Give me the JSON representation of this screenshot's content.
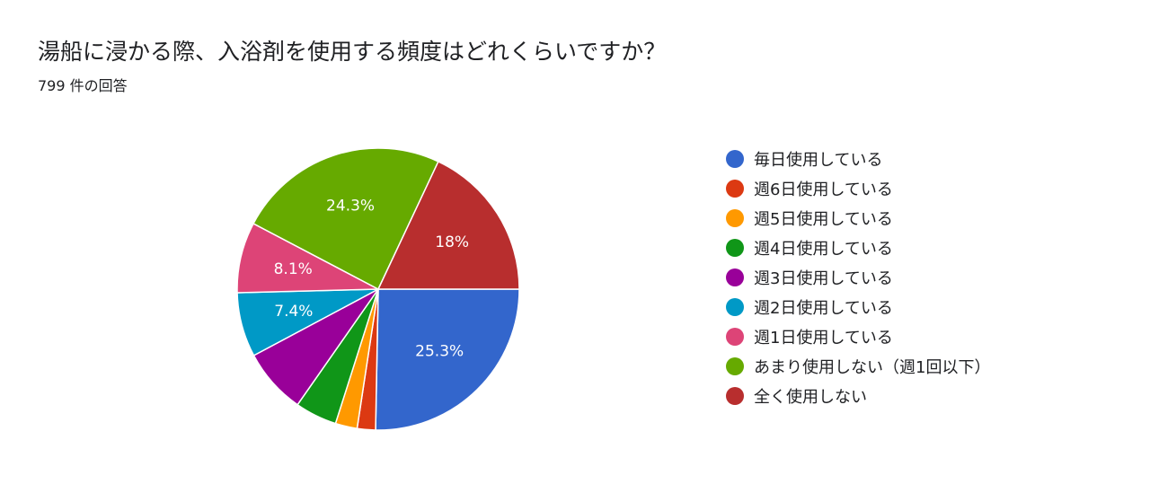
{
  "header": {
    "title": "湯船に浸かる際、入浴剤を使用する頻度はどれくらいですか？",
    "subtitle": "799 件の回答"
  },
  "chart_data": {
    "type": "pie",
    "title": "湯船に浸かる際、入浴剤を使用する頻度はどれくらいですか？",
    "legend_position": "right",
    "slices": [
      {
        "label": "毎日使用している",
        "value": 25.3,
        "display": "25.3%",
        "color": "#3366cc"
      },
      {
        "label": "週6日使用している",
        "value": 2.1,
        "display": "",
        "color": "#dc3912"
      },
      {
        "label": "週5日使用している",
        "value": 2.5,
        "display": "",
        "color": "#ff9900"
      },
      {
        "label": "週4日使用している",
        "value": 4.8,
        "display": "",
        "color": "#109618"
      },
      {
        "label": "週3日使用している",
        "value": 7.5,
        "display": "",
        "color": "#990099"
      },
      {
        "label": "週2日使用している",
        "value": 7.4,
        "display": "7.4%",
        "color": "#0099c6"
      },
      {
        "label": "週1日使用している",
        "value": 8.1,
        "display": "8.1%",
        "color": "#dd4477"
      },
      {
        "label": "あまり使用しない（週1回以下）",
        "value": 24.3,
        "display": "24.3%",
        "color": "#66aa00"
      },
      {
        "label": "全く使用しない",
        "value": 18.0,
        "display": "18%",
        "color": "#b82e2e"
      }
    ]
  }
}
